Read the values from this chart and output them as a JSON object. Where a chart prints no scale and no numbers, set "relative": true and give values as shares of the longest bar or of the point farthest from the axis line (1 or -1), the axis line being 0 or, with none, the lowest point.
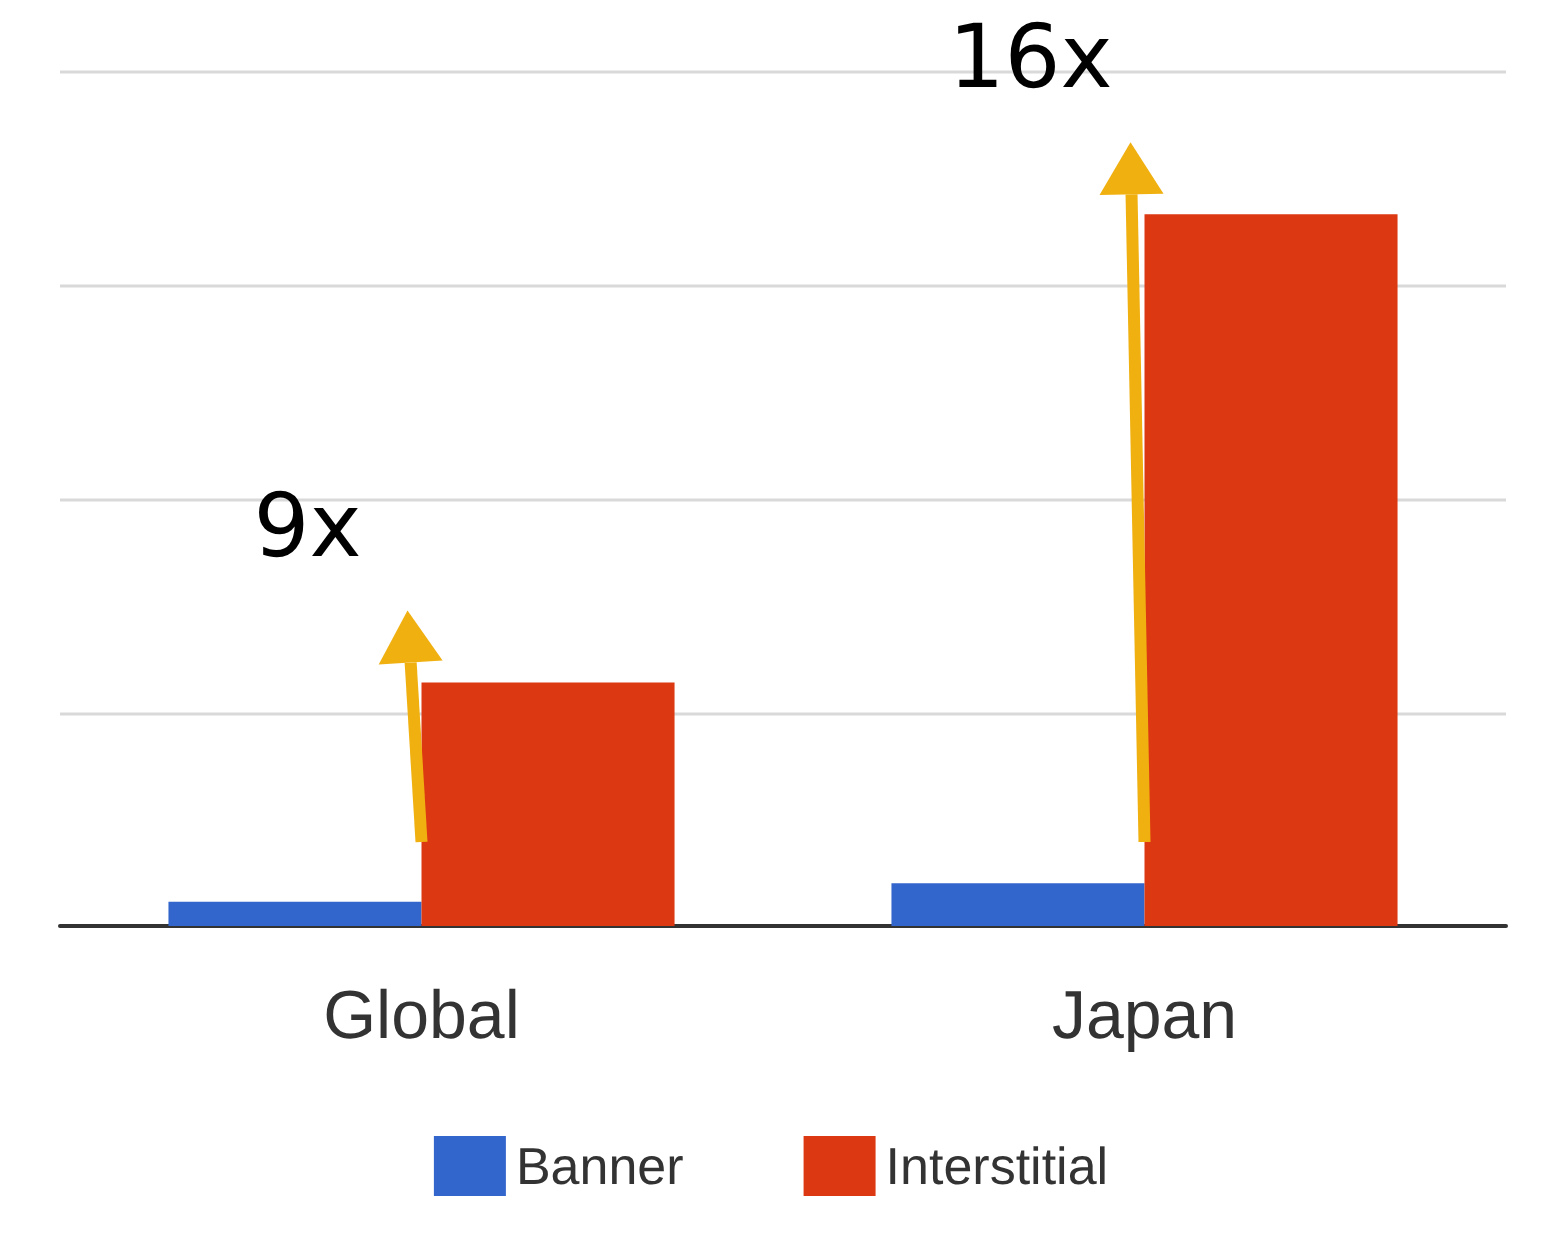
{
  "chart_data": {
    "type": "bar",
    "relative": true,
    "categories": [
      "Global",
      "Japan"
    ],
    "series": [
      {
        "name": "Banner",
        "color": "#3366cc",
        "values": [
          0.034,
          0.06
        ]
      },
      {
        "name": "Interstitial",
        "color": "#dc3912",
        "values": [
          0.342,
          1
        ]
      }
    ],
    "annotations": [
      "9x",
      "16x"
    ],
    "grid": "y",
    "legend": "bottom"
  }
}
